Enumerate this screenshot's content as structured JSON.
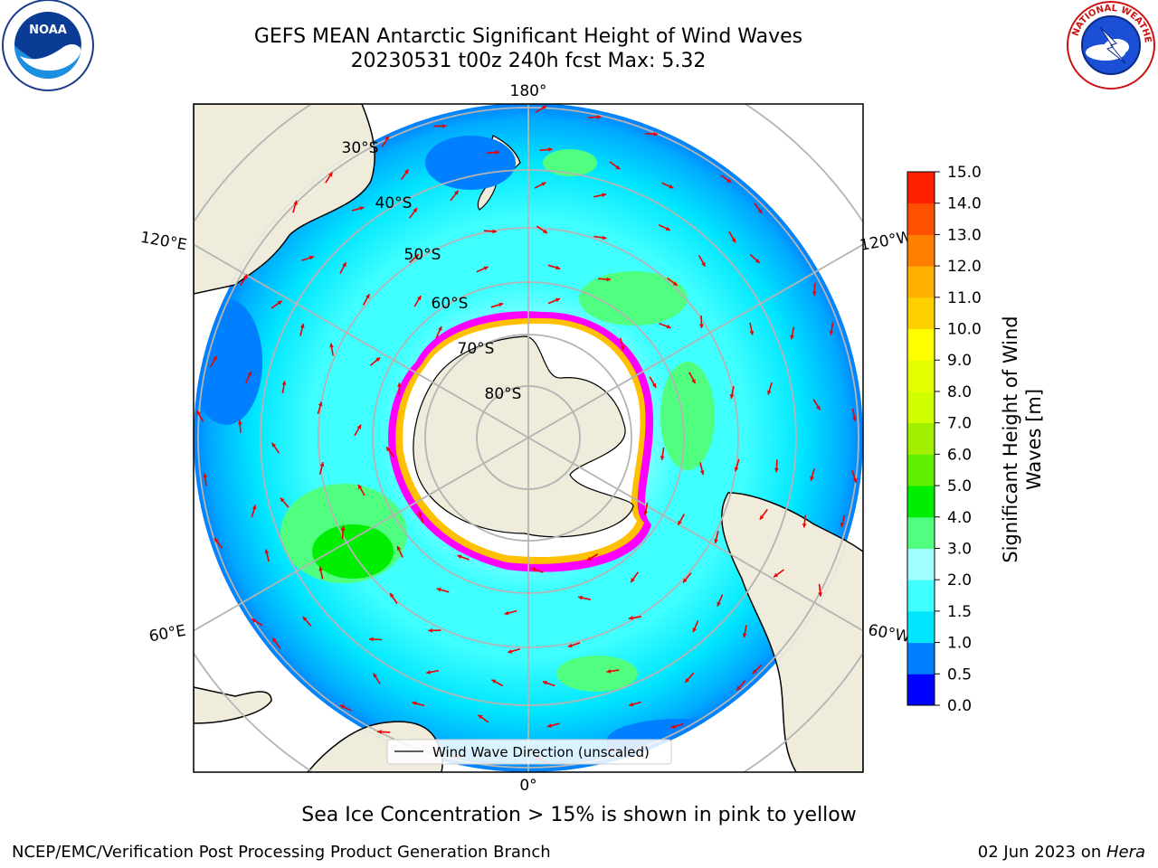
{
  "header": {
    "title_line1": "GEFS MEAN Antarctic Significant Height of Wind Waves",
    "title_line2": "20230531 t00z 240h fcst   Max: 5.32"
  },
  "logos": {
    "left_text": "NOAA",
    "left_ring_text": "NATIONAL OCEANIC AND ATMOSPHERIC ADMINISTRATION · U.S. DEPARTMENT OF COMMERCE",
    "right_ring_text": "NATIONAL WEATHER SERVICE"
  },
  "map": {
    "longitude_labels": [
      "180°",
      "120°E",
      "120°W",
      "60°E",
      "60°W",
      "0°"
    ],
    "latitude_labels": [
      "30°S",
      "40°S",
      "50°S",
      "60°S",
      "70°S",
      "80°S"
    ],
    "legend_label": "Wind Wave Direction (unscaled)",
    "colors": {
      "land": "#efecdc",
      "ice_free_ocean_low": "#00ffff",
      "ice_edge_pink": "#ff00ff",
      "ice_edge_yellow": "#ffc000",
      "arrow": "#ee0000",
      "grid": "#b4b4b4"
    }
  },
  "colorbar": {
    "label": "Significant Height of Wind Waves [m]",
    "label_line1": "Significant Height of Wind",
    "label_line2": "Waves [m]",
    "ticks": [
      "0.0",
      "0.5",
      "1.0",
      "1.5",
      "2.0",
      "3.0",
      "4.0",
      "5.0",
      "6.0",
      "7.0",
      "8.0",
      "9.0",
      "10.0",
      "11.0",
      "12.0",
      "13.0",
      "14.0",
      "15.0"
    ],
    "colors": [
      "#0000ff",
      "#0080ff",
      "#00e6ff",
      "#40ffff",
      "#a0ffff",
      "#50ff80",
      "#00ee00",
      "#60ee00",
      "#a0f000",
      "#d0ff00",
      "#e6ff00",
      "#ffff00",
      "#ffd000",
      "#ffb000",
      "#ff8000",
      "#ff5000",
      "#ff2000"
    ]
  },
  "caption": "Sea Ice Concentration > 15% is shown in pink to yellow",
  "footer": {
    "left": "NCEP/EMC/Verification Post Processing Product Generation Branch",
    "right_date": "02 Jun 2023 on ",
    "right_host": "Hera"
  }
}
